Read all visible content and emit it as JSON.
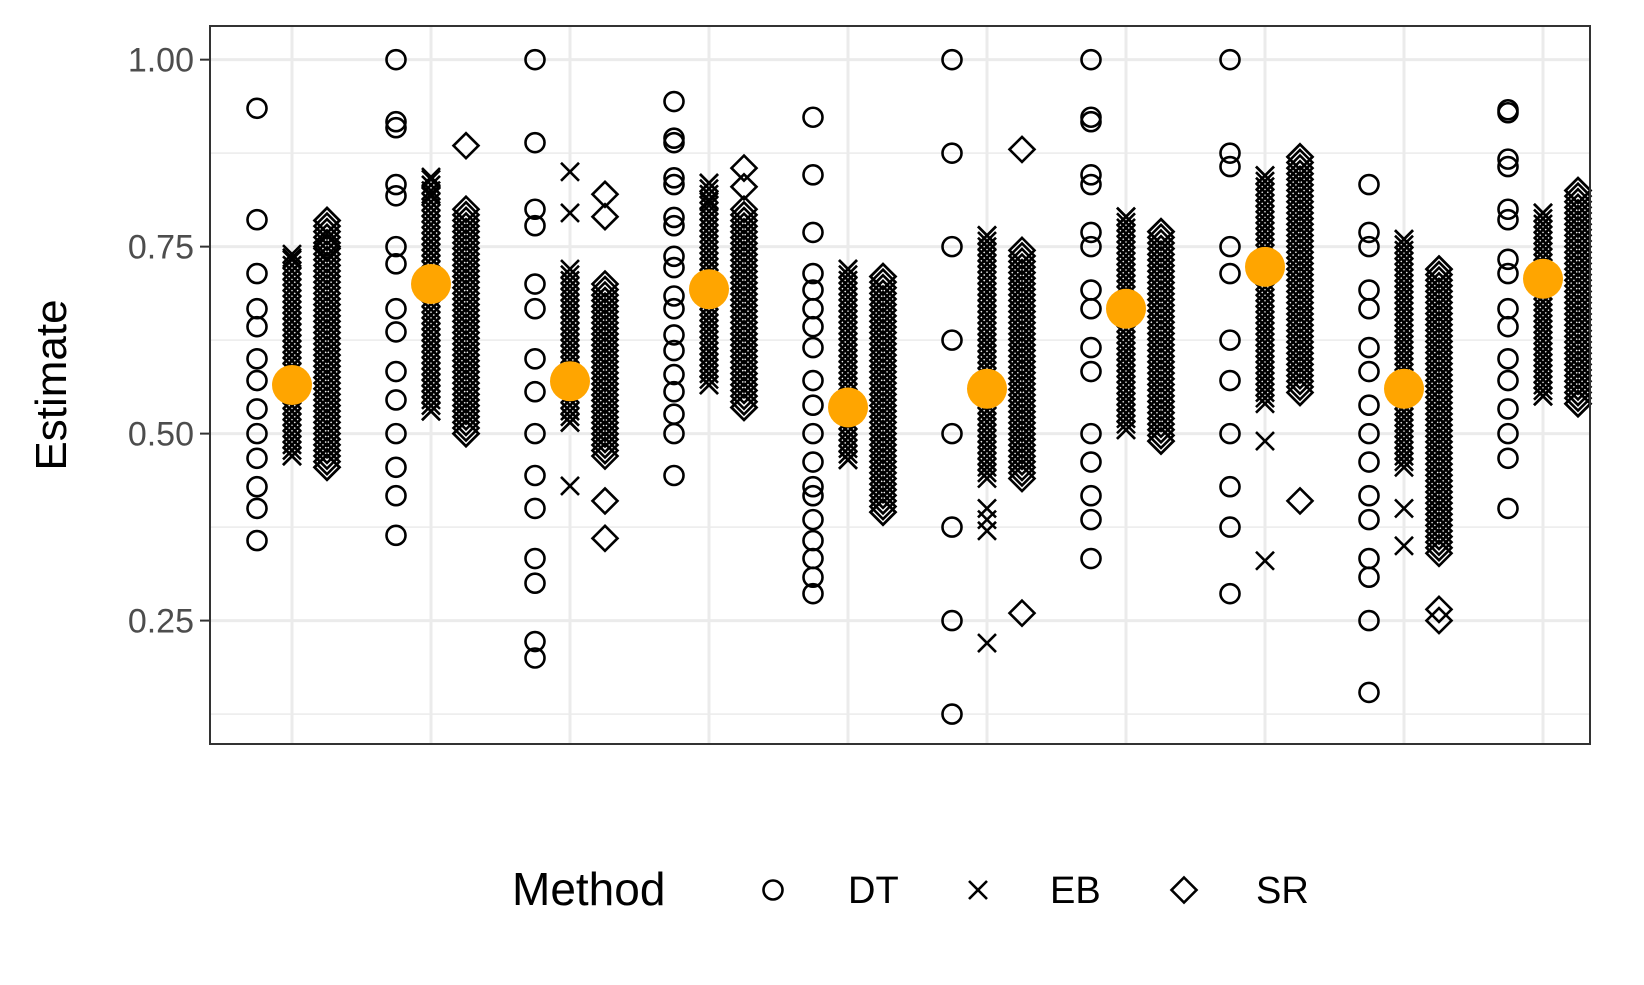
{
  "chart_data": {
    "type": "scatter",
    "title": "",
    "xlabel": "",
    "ylabel": "Estimate",
    "ylim": [
      0.085,
      1.045
    ],
    "yticks": [
      0.25,
      0.5,
      0.75,
      1.0
    ],
    "ytick_labels": [
      "0.25",
      "0.50",
      "0.75",
      "1.00"
    ],
    "minor_yticks": [
      0.125,
      0.375,
      0.625,
      0.875
    ],
    "x_groups": 10,
    "x_tick_labels": [],
    "grid": true,
    "legend": {
      "title": "Method",
      "position": "bottom",
      "entries": [
        {
          "label": "DT",
          "marker": "circle"
        },
        {
          "label": "EB",
          "marker": "cross"
        },
        {
          "label": "SR",
          "marker": "diamond"
        }
      ]
    },
    "colors": {
      "points": "#000000",
      "truth": "#FFA500",
      "grid": "#EBEBEB",
      "border": "#333333"
    },
    "truth_values": [
      0.565,
      0.7,
      0.57,
      0.693,
      0.535,
      0.56,
      0.667,
      0.723,
      0.56,
      0.707
    ],
    "series": [
      {
        "name": "DT",
        "groups": [
          [
            0.935,
            0.786,
            0.714,
            0.667,
            0.643,
            0.6,
            0.571,
            0.533,
            0.5,
            0.467,
            0.429,
            0.4,
            0.357
          ],
          [
            1.0,
            0.917,
            0.909,
            0.833,
            0.818,
            0.75,
            0.727,
            0.667,
            0.636,
            0.583,
            0.545,
            0.5,
            0.455,
            0.417,
            0.364
          ],
          [
            1.0,
            0.889,
            0.8,
            0.778,
            0.7,
            0.667,
            0.6,
            0.556,
            0.5,
            0.444,
            0.4,
            0.333,
            0.3,
            0.222,
            0.2
          ],
          [
            0.944,
            0.895,
            0.889,
            0.842,
            0.833,
            0.789,
            0.778,
            0.737,
            0.722,
            0.684,
            0.667,
            0.632,
            0.611,
            0.579,
            0.556,
            0.526,
            0.5,
            0.444
          ],
          [
            0.923,
            0.846,
            0.769,
            0.714,
            0.692,
            0.667,
            0.643,
            0.615,
            0.571,
            0.538,
            0.5,
            0.462,
            0.429,
            0.417,
            0.385,
            0.357,
            0.333,
            0.308,
            0.286
          ],
          [
            1.0,
            0.875,
            0.75,
            0.625,
            0.5,
            0.375,
            0.25,
            0.125
          ],
          [
            1.0,
            0.923,
            0.917,
            0.846,
            0.833,
            0.769,
            0.75,
            0.692,
            0.667,
            0.615,
            0.583,
            0.5,
            0.462,
            0.417,
            0.385,
            0.333
          ],
          [
            1.0,
            0.875,
            0.857,
            0.75,
            0.714,
            0.625,
            0.571,
            0.5,
            0.429,
            0.375,
            0.286
          ],
          [
            0.833,
            0.769,
            0.75,
            0.692,
            0.667,
            0.615,
            0.583,
            0.538,
            0.5,
            0.462,
            0.417,
            0.385,
            0.333,
            0.308,
            0.25,
            0.154
          ],
          [
            0.933,
            0.929,
            0.867,
            0.857,
            0.8,
            0.786,
            0.733,
            0.714,
            0.667,
            0.643,
            0.6,
            0.571,
            0.533,
            0.5,
            0.467,
            0.4
          ]
        ]
      },
      {
        "name": "EB",
        "groups": [
          {
            "min": 0.47,
            "max": 0.74,
            "outliers": [
              0.735,
              0.47
            ]
          },
          {
            "min": 0.53,
            "max": 0.84,
            "outliers": [
              0.843,
              0.82,
              0.53
            ]
          },
          {
            "min": 0.515,
            "max": 0.72,
            "outliers": [
              0.85,
              0.795,
              0.43,
              0.515
            ]
          },
          {
            "min": 0.565,
            "max": 0.835,
            "outliers": [
              0.835,
              0.81,
              0.565
            ]
          },
          {
            "min": 0.465,
            "max": 0.72,
            "outliers": [
              0.72,
              0.465
            ]
          },
          {
            "min": 0.44,
            "max": 0.765,
            "outliers": [
              0.765,
              0.4,
              0.385,
              0.37,
              0.22
            ]
          },
          {
            "min": 0.505,
            "max": 0.79,
            "outliers": [
              0.79,
              0.505
            ]
          },
          {
            "min": 0.54,
            "max": 0.845,
            "outliers": [
              0.845,
              0.49,
              0.33
            ]
          },
          {
            "min": 0.455,
            "max": 0.76,
            "outliers": [
              0.76,
              0.4,
              0.35
            ]
          },
          {
            "min": 0.55,
            "max": 0.795,
            "outliers": [
              0.795,
              0.55
            ]
          }
        ]
      },
      {
        "name": "SR",
        "groups": [
          {
            "min": 0.455,
            "max": 0.785,
            "outliers": [
              0.785,
              0.75,
              0.455
            ]
          },
          {
            "min": 0.5,
            "max": 0.8,
            "outliers": [
              0.885,
              0.5
            ]
          },
          {
            "min": 0.47,
            "max": 0.7,
            "outliers": [
              0.82,
              0.79,
              0.41,
              0.36
            ]
          },
          {
            "min": 0.535,
            "max": 0.8,
            "outliers": [
              0.855,
              0.83,
              0.535
            ]
          },
          {
            "min": 0.395,
            "max": 0.71,
            "outliers": [
              0.71,
              0.395
            ]
          },
          {
            "min": 0.44,
            "max": 0.745,
            "outliers": [
              0.88,
              0.26
            ]
          },
          {
            "min": 0.49,
            "max": 0.77,
            "outliers": [
              0.77,
              0.49
            ]
          },
          {
            "min": 0.555,
            "max": 0.87,
            "outliers": [
              0.87,
              0.41
            ]
          },
          {
            "min": 0.34,
            "max": 0.72,
            "outliers": [
              0.72,
              0.265,
              0.25
            ]
          },
          {
            "min": 0.54,
            "max": 0.825,
            "outliers": [
              0.825,
              0.54
            ]
          }
        ]
      }
    ]
  }
}
